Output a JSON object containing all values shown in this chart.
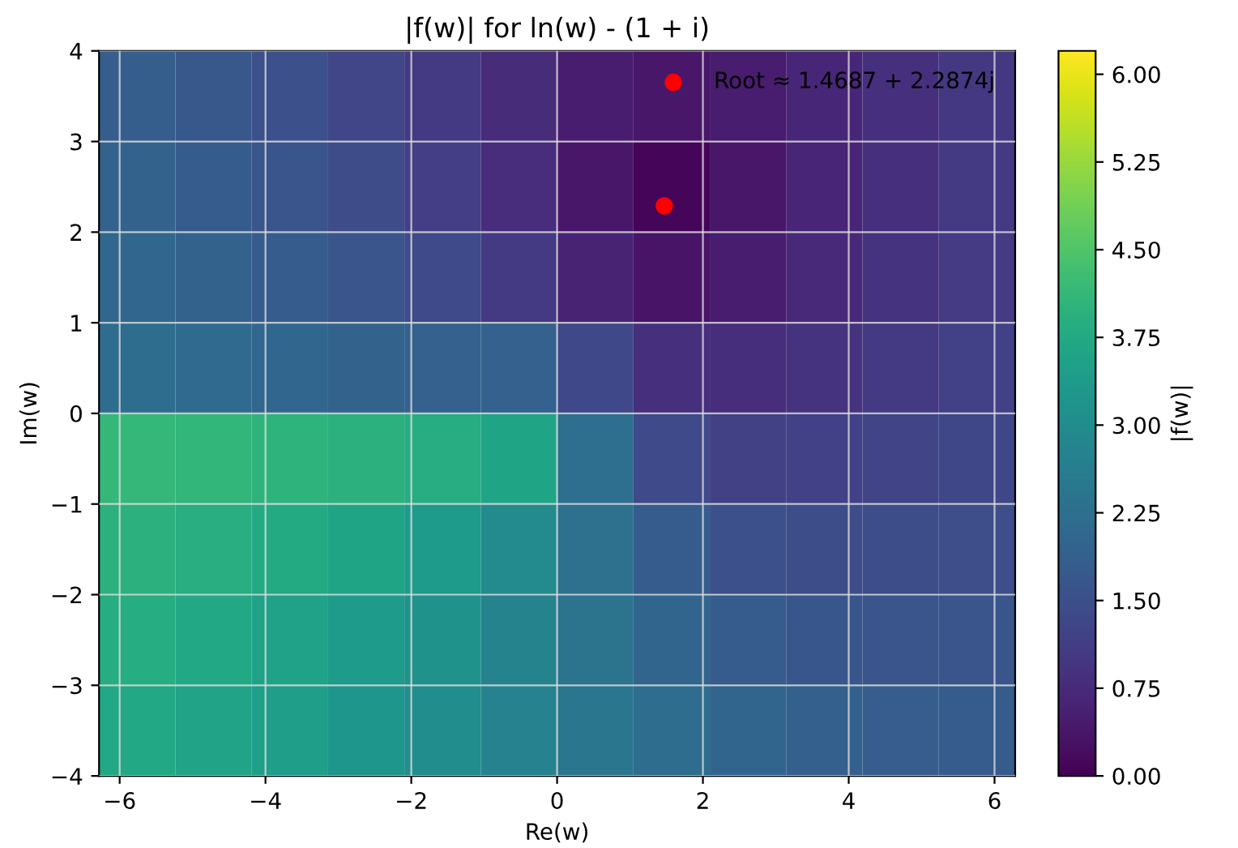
{
  "chart_data": {
    "type": "heatmap",
    "title": "|f(w)| for ln(w) - (1 + i)",
    "xlabel": "Re(w)",
    "ylabel": "Im(w)",
    "clabel": "|f(w)|",
    "xlim": [
      -6.283,
      6.283
    ],
    "ylim": [
      -4,
      4
    ],
    "xticks": [
      {
        "value": -6,
        "label": "−6"
      },
      {
        "value": -4,
        "label": "−4"
      },
      {
        "value": -2,
        "label": "−2"
      },
      0,
      2,
      4,
      6
    ],
    "yticks": [
      {
        "value": -4,
        "label": "−4"
      },
      {
        "value": -3,
        "label": "−3"
      },
      {
        "value": -2,
        "label": "−2"
      },
      {
        "value": -1,
        "label": "−1"
      },
      0,
      1,
      2,
      3,
      4
    ],
    "clim": [
      0,
      6.2
    ],
    "cticks": [
      {
        "value": 0,
        "label": "0.00"
      },
      {
        "value": 0.75,
        "label": "0.75"
      },
      {
        "value": 1.5,
        "label": "1.50"
      },
      {
        "value": 2.25,
        "label": "2.25"
      },
      {
        "value": 3,
        "label": "3.00"
      },
      {
        "value": 3.75,
        "label": "3.75"
      },
      {
        "value": 4.5,
        "label": "4.50"
      },
      {
        "value": 5.25,
        "label": "5.25"
      },
      {
        "value": 6,
        "label": "6.00"
      }
    ],
    "cells": [
      [
        1.84,
        1.69,
        1.51,
        1.3,
        1.05,
        0.77,
        0.5,
        0.37,
        0.48,
        0.67,
        0.85,
        1.01
      ],
      [
        1.92,
        1.79,
        1.62,
        1.41,
        1.13,
        0.78,
        0.37,
        0.08,
        0.37,
        0.63,
        0.85,
        1.02
      ],
      [
        2.04,
        1.93,
        1.79,
        1.63,
        1.4,
        1.05,
        0.59,
        0.33,
        0.49,
        0.72,
        0.91,
        1.07
      ],
      [
        2.19,
        2.11,
        2.03,
        1.95,
        1.9,
        1.91,
        1.35,
        0.85,
        0.81,
        0.92,
        1.05,
        1.18
      ],
      [
        4.12,
        4.07,
        4.02,
        3.95,
        3.87,
        3.63,
        2.21,
        1.4,
        1.19,
        1.18,
        1.24,
        1.32
      ],
      [
        3.96,
        3.88,
        3.77,
        3.62,
        3.39,
        2.95,
        2.3,
        1.78,
        1.52,
        1.44,
        1.44,
        1.47
      ],
      [
        3.83,
        3.72,
        3.58,
        3.39,
        3.13,
        2.78,
        2.37,
        2.01,
        1.79,
        1.67,
        1.63,
        1.64
      ],
      [
        3.71,
        3.59,
        3.44,
        3.25,
        3.01,
        2.73,
        2.44,
        2.18,
        1.99,
        1.87,
        1.81,
        1.79
      ]
    ],
    "series": [
      {
        "type": "scatter",
        "name": "Root ≈ 1.4687 + 2.2874j",
        "color": "#ff0000",
        "x": [
          1.47
        ],
        "values": [
          2.29
        ],
        "marker": "circle"
      }
    ],
    "grid": true,
    "legend": "top right"
  }
}
